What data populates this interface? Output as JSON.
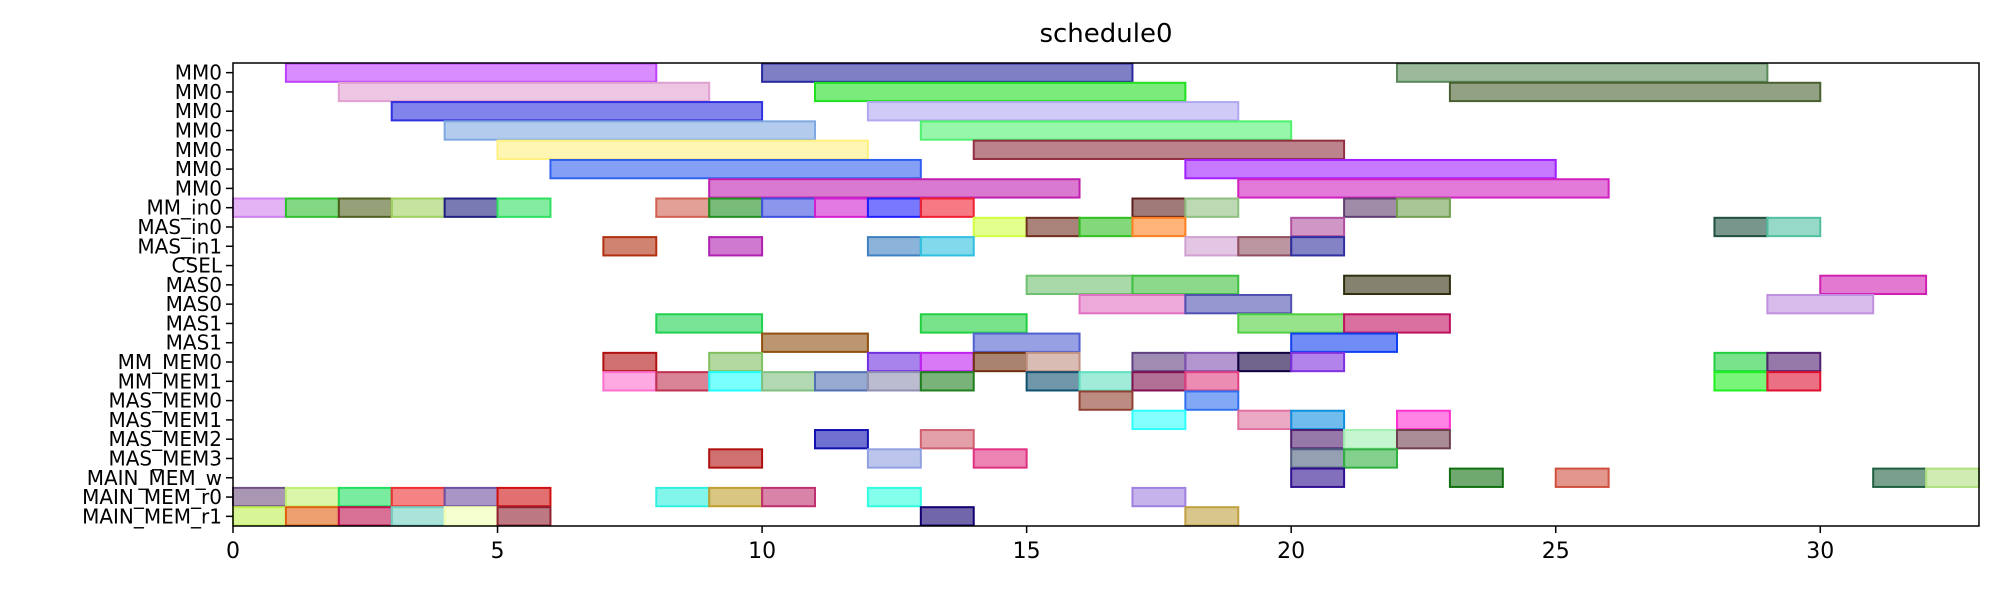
{
  "chart_data": {
    "type": "bar",
    "subtype": "gantt",
    "title": "schedule0",
    "xlabel": "",
    "ylabel": "",
    "xlim": [
      0,
      33
    ],
    "xticks": [
      0,
      5,
      10,
      15,
      20,
      25,
      30
    ],
    "grid": false,
    "legend": "none",
    "rows": [
      "MM0",
      "MM0",
      "MM0",
      "MM0",
      "MM0",
      "MM0",
      "MM0",
      "MM_in0",
      "MAS_in0",
      "MAS_in1",
      "CSEL",
      "MAS0",
      "MAS0",
      "MAS1",
      "MAS1",
      "MM_MEM0",
      "MM_MEM1",
      "MAS_MEM0",
      "MAS_MEM1",
      "MAS_MEM2",
      "MAS_MEM3",
      "MAIN_MEM_w",
      "MAIN_MEM_r0",
      "MAIN_MEM_r1"
    ],
    "tasks": [
      {
        "row": 0,
        "start": 1,
        "end": 8,
        "color": "#c040ff"
      },
      {
        "row": 0,
        "start": 10,
        "end": 17,
        "color": "#2a2aa0"
      },
      {
        "row": 0,
        "start": 22,
        "end": 29,
        "color": "#5a8a5a"
      },
      {
        "row": 1,
        "start": 2,
        "end": 9,
        "color": "#e0a0d0"
      },
      {
        "row": 1,
        "start": 11,
        "end": 18,
        "color": "#20e020"
      },
      {
        "row": 1,
        "start": 23,
        "end": 30,
        "color": "#4a6030"
      },
      {
        "row": 2,
        "start": 3,
        "end": 10,
        "color": "#3030e0"
      },
      {
        "row": 2,
        "start": 12,
        "end": 19,
        "color": "#b0a8f0"
      },
      {
        "row": 3,
        "start": 4,
        "end": 11,
        "color": "#80a8e0"
      },
      {
        "row": 3,
        "start": 13,
        "end": 20,
        "color": "#50f070"
      },
      {
        "row": 4,
        "start": 5,
        "end": 12,
        "color": "#fff080"
      },
      {
        "row": 4,
        "start": 14,
        "end": 21,
        "color": "#903040"
      },
      {
        "row": 5,
        "start": 6,
        "end": 13,
        "color": "#3060f0"
      },
      {
        "row": 5,
        "start": 18,
        "end": 25,
        "color": "#a020ff"
      },
      {
        "row": 6,
        "start": 9,
        "end": 16,
        "color": "#c020b0"
      },
      {
        "row": 6,
        "start": 19,
        "end": 26,
        "color": "#d020c0"
      },
      {
        "row": 7,
        "start": 0,
        "end": 1,
        "color": "#d080f0"
      },
      {
        "row": 7,
        "start": 1,
        "end": 2,
        "color": "#30c030"
      },
      {
        "row": 7,
        "start": 2,
        "end": 3,
        "color": "#506020"
      },
      {
        "row": 7,
        "start": 3,
        "end": 4,
        "color": "#a0d060"
      },
      {
        "row": 7,
        "start": 4,
        "end": 5,
        "color": "#202080"
      },
      {
        "row": 7,
        "start": 5,
        "end": 6,
        "color": "#30e060"
      },
      {
        "row": 7,
        "start": 8,
        "end": 9,
        "color": "#d06050"
      },
      {
        "row": 7,
        "start": 9,
        "end": 10,
        "color": "#209020"
      },
      {
        "row": 7,
        "start": 10,
        "end": 11,
        "color": "#4050e0"
      },
      {
        "row": 7,
        "start": 11,
        "end": 12,
        "color": "#d020d0"
      },
      {
        "row": 7,
        "start": 12,
        "end": 13,
        "color": "#2020ff"
      },
      {
        "row": 7,
        "start": 13,
        "end": 14,
        "color": "#f02030"
      },
      {
        "row": 7,
        "start": 17,
        "end": 18,
        "color": "#602020"
      },
      {
        "row": 7,
        "start": 18,
        "end": 19,
        "color": "#90c080"
      },
      {
        "row": 7,
        "start": 21,
        "end": 22,
        "color": "#604070"
      },
      {
        "row": 7,
        "start": 22,
        "end": 23,
        "color": "#70a050"
      },
      {
        "row": 8,
        "start": 14,
        "end": 15,
        "color": "#d0ff40"
      },
      {
        "row": 8,
        "start": 15,
        "end": 16,
        "color": "#703020"
      },
      {
        "row": 8,
        "start": 16,
        "end": 17,
        "color": "#30c020"
      },
      {
        "row": 8,
        "start": 17,
        "end": 18,
        "color": "#ff8020"
      },
      {
        "row": 8,
        "start": 20,
        "end": 21,
        "color": "#b050a0"
      },
      {
        "row": 8,
        "start": 28,
        "end": 29,
        "color": "#205040"
      },
      {
        "row": 8,
        "start": 29,
        "end": 30,
        "color": "#50c0a0"
      },
      {
        "row": 9,
        "start": 7,
        "end": 8,
        "color": "#b03010"
      },
      {
        "row": 9,
        "start": 9,
        "end": 10,
        "color": "#b020b0"
      },
      {
        "row": 9,
        "start": 12,
        "end": 13,
        "color": "#4080c0"
      },
      {
        "row": 9,
        "start": 13,
        "end": 14,
        "color": "#30c0e0"
      },
      {
        "row": 9,
        "start": 18,
        "end": 19,
        "color": "#d0a0d0"
      },
      {
        "row": 9,
        "start": 19,
        "end": 20,
        "color": "#905060"
      },
      {
        "row": 9,
        "start": 20,
        "end": 21,
        "color": "#3030a0"
      },
      {
        "row": 11,
        "start": 15,
        "end": 17,
        "color": "#70c070"
      },
      {
        "row": 11,
        "start": 17,
        "end": 19,
        "color": "#40c040"
      },
      {
        "row": 11,
        "start": 21,
        "end": 23,
        "color": "#303010"
      },
      {
        "row": 11,
        "start": 30,
        "end": 32,
        "color": "#d020b0"
      },
      {
        "row": 12,
        "start": 16,
        "end": 18,
        "color": "#e070c0"
      },
      {
        "row": 12,
        "start": 18,
        "end": 20,
        "color": "#5050b0"
      },
      {
        "row": 12,
        "start": 29,
        "end": 31,
        "color": "#c090e0"
      },
      {
        "row": 13,
        "start": 8,
        "end": 10,
        "color": "#20d050"
      },
      {
        "row": 13,
        "start": 13,
        "end": 15,
        "color": "#20d040"
      },
      {
        "row": 13,
        "start": 19,
        "end": 21,
        "color": "#50d040"
      },
      {
        "row": 13,
        "start": 21,
        "end": 23,
        "color": "#c01060"
      },
      {
        "row": 14,
        "start": 10,
        "end": 12,
        "color": "#905010"
      },
      {
        "row": 14,
        "start": 14,
        "end": 16,
        "color": "#5060d0"
      },
      {
        "row": 14,
        "start": 20,
        "end": 22,
        "color": "#1040f0"
      },
      {
        "row": 15,
        "start": 7,
        "end": 8,
        "color": "#b01010"
      },
      {
        "row": 15,
        "start": 9,
        "end": 10,
        "color": "#80c060"
      },
      {
        "row": 15,
        "start": 12,
        "end": 13,
        "color": "#7030e0"
      },
      {
        "row": 15,
        "start": 13,
        "end": 14,
        "color": "#c020f0"
      },
      {
        "row": 15,
        "start": 14,
        "end": 15,
        "color": "#703010"
      },
      {
        "row": 15,
        "start": 15,
        "end": 16,
        "color": "#c09080"
      },
      {
        "row": 15,
        "start": 17,
        "end": 18,
        "color": "#604080"
      },
      {
        "row": 15,
        "start": 18,
        "end": 19,
        "color": "#8050b0"
      },
      {
        "row": 15,
        "start": 19,
        "end": 20,
        "color": "#100040"
      },
      {
        "row": 15,
        "start": 20,
        "end": 21,
        "color": "#8030e0"
      },
      {
        "row": 15,
        "start": 28,
        "end": 29,
        "color": "#20d040"
      },
      {
        "row": 15,
        "start": 29,
        "end": 30,
        "color": "#502070"
      },
      {
        "row": 16,
        "start": 7,
        "end": 8,
        "color": "#ff70d0"
      },
      {
        "row": 16,
        "start": 8,
        "end": 9,
        "color": "#c03050"
      },
      {
        "row": 16,
        "start": 9,
        "end": 10,
        "color": "#20ffff"
      },
      {
        "row": 16,
        "start": 10,
        "end": 11,
        "color": "#80c080"
      },
      {
        "row": 16,
        "start": 11,
        "end": 12,
        "color": "#5070b0"
      },
      {
        "row": 16,
        "start": 12,
        "end": 13,
        "color": "#9090b0"
      },
      {
        "row": 16,
        "start": 13,
        "end": 14,
        "color": "#208020"
      },
      {
        "row": 16,
        "start": 15,
        "end": 16,
        "color": "#105070"
      },
      {
        "row": 16,
        "start": 16,
        "end": 17,
        "color": "#60e0c0"
      },
      {
        "row": 16,
        "start": 17,
        "end": 18,
        "color": "#801050"
      },
      {
        "row": 16,
        "start": 18,
        "end": 19,
        "color": "#e04080"
      },
      {
        "row": 16,
        "start": 28,
        "end": 29,
        "color": "#20f020"
      },
      {
        "row": 16,
        "start": 29,
        "end": 30,
        "color": "#e01030"
      },
      {
        "row": 17,
        "start": 16,
        "end": 17,
        "color": "#904030"
      },
      {
        "row": 17,
        "start": 18,
        "end": 19,
        "color": "#3070f0"
      },
      {
        "row": 18,
        "start": 17,
        "end": 18,
        "color": "#30ffff"
      },
      {
        "row": 18,
        "start": 19,
        "end": 20,
        "color": "#e070a0"
      },
      {
        "row": 18,
        "start": 20,
        "end": 21,
        "color": "#1090e0"
      },
      {
        "row": 18,
        "start": 22,
        "end": 23,
        "color": "#ff30d0"
      },
      {
        "row": 19,
        "start": 11,
        "end": 12,
        "color": "#1010b0"
      },
      {
        "row": 19,
        "start": 13,
        "end": 14,
        "color": "#d06070"
      },
      {
        "row": 19,
        "start": 20,
        "end": 21,
        "color": "#502070"
      },
      {
        "row": 19,
        "start": 21,
        "end": 22,
        "color": "#a0f0b0"
      },
      {
        "row": 19,
        "start": 22,
        "end": 23,
        "color": "#704050"
      },
      {
        "row": 20,
        "start": 9,
        "end": 10,
        "color": "#b01010"
      },
      {
        "row": 20,
        "start": 12,
        "end": 13,
        "color": "#90a0e0"
      },
      {
        "row": 20,
        "start": 14,
        "end": 15,
        "color": "#e03080"
      },
      {
        "row": 20,
        "start": 20,
        "end": 21,
        "color": "#506080"
      },
      {
        "row": 20,
        "start": 21,
        "end": 22,
        "color": "#30b040"
      },
      {
        "row": 21,
        "start": 20,
        "end": 21,
        "color": "#301090"
      },
      {
        "row": 21,
        "start": 23,
        "end": 24,
        "color": "#107010"
      },
      {
        "row": 21,
        "start": 25,
        "end": 26,
        "color": "#d05040"
      },
      {
        "row": 21,
        "start": 31,
        "end": 32,
        "color": "#206040"
      },
      {
        "row": 21,
        "start": 32,
        "end": 33,
        "color": "#b0e080"
      },
      {
        "row": 22,
        "start": 0,
        "end": 1,
        "color": "#705080"
      },
      {
        "row": 22,
        "start": 1,
        "end": 2,
        "color": "#c0f070"
      },
      {
        "row": 22,
        "start": 2,
        "end": 3,
        "color": "#20e060"
      },
      {
        "row": 22,
        "start": 3,
        "end": 4,
        "color": "#f03030"
      },
      {
        "row": 22,
        "start": 4,
        "end": 5,
        "color": "#7050a0"
      },
      {
        "row": 22,
        "start": 5,
        "end": 6,
        "color": "#d01010"
      },
      {
        "row": 22,
        "start": 8,
        "end": 9,
        "color": "#30f0e0"
      },
      {
        "row": 22,
        "start": 9,
        "end": 10,
        "color": "#c0a030"
      },
      {
        "row": 22,
        "start": 10,
        "end": 11,
        "color": "#c03070"
      },
      {
        "row": 22,
        "start": 12,
        "end": 13,
        "color": "#30ffe0"
      },
      {
        "row": 22,
        "start": 17,
        "end": 18,
        "color": "#a080e0"
      },
      {
        "row": 23,
        "start": 0,
        "end": 1,
        "color": "#c0f050"
      },
      {
        "row": 23,
        "start": 1,
        "end": 2,
        "color": "#e06010"
      },
      {
        "row": 23,
        "start": 2,
        "end": 3,
        "color": "#c01050"
      },
      {
        "row": 23,
        "start": 3,
        "end": 4,
        "color": "#70d0c0"
      },
      {
        "row": 23,
        "start": 4,
        "end": 5,
        "color": "#f0ffb0"
      },
      {
        "row": 23,
        "start": 5,
        "end": 6,
        "color": "#902030"
      },
      {
        "row": 23,
        "start": 13,
        "end": 14,
        "color": "#100070"
      },
      {
        "row": 23,
        "start": 18,
        "end": 19,
        "color": "#c0a040"
      }
    ]
  }
}
